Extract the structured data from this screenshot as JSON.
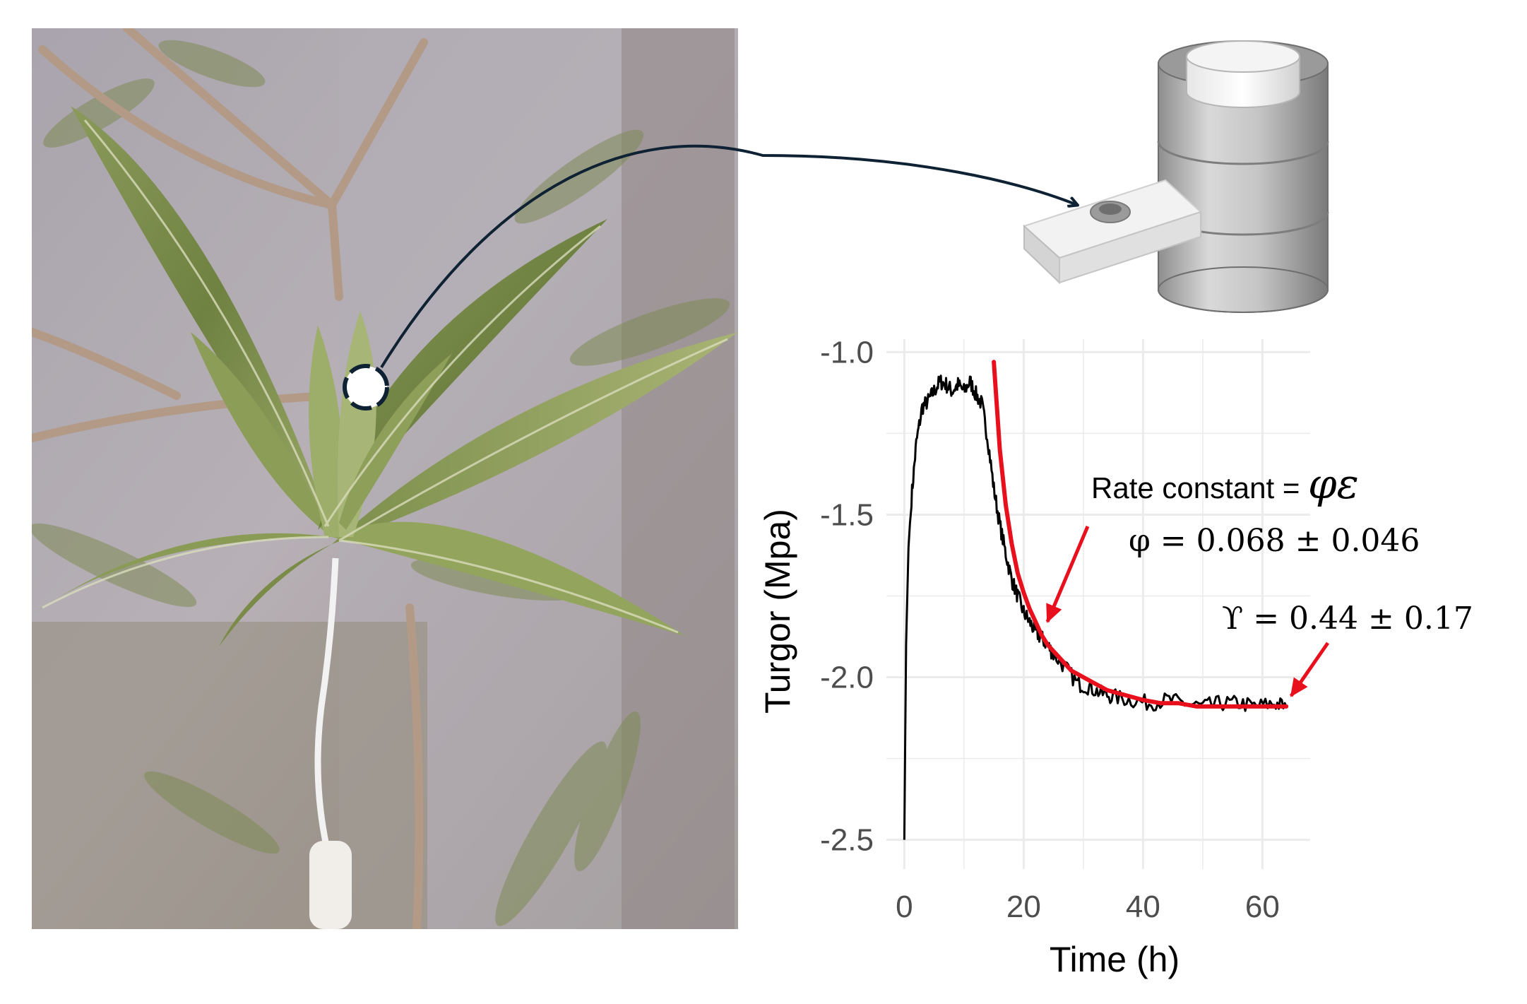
{
  "photo": {
    "subject": "olive-leaf-shoot",
    "marker_icon": "sample-spot-icon",
    "arrow_icon": "curved-arrow-icon"
  },
  "device": {
    "icon": "pressure-probe-icon"
  },
  "chart_data": {
    "type": "line",
    "title": "",
    "xlabel": "Time (h)",
    "ylabel": "Turgor (Mpa)",
    "xlim": [
      -3,
      68
    ],
    "ylim": [
      -2.59,
      -0.96
    ],
    "x_ticks": [
      0,
      20,
      40,
      60
    ],
    "y_ticks": [
      -1.0,
      -1.5,
      -2.0,
      -2.5
    ],
    "x_tick_labels": [
      "0",
      "20",
      "40",
      "60"
    ],
    "y_tick_labels": [
      "-1.0",
      "-1.5",
      "-2.0",
      "-2.5"
    ],
    "grid": true,
    "series": [
      {
        "name": "",
        "kind": "measured",
        "color": "#000000",
        "x": [
          0,
          0.3,
          0.7,
          1.2,
          2,
          3,
          4,
          5,
          6,
          7,
          8,
          9,
          10,
          11,
          12,
          13,
          14,
          15,
          16,
          17,
          18,
          19,
          20,
          21,
          22,
          23,
          24,
          25,
          27,
          29,
          31,
          33,
          35,
          38,
          41,
          44,
          47,
          50,
          53,
          56,
          59,
          62,
          64
        ],
        "y": [
          -2.5,
          -1.9,
          -1.6,
          -1.45,
          -1.28,
          -1.17,
          -1.15,
          -1.12,
          -1.09,
          -1.1,
          -1.12,
          -1.1,
          -1.12,
          -1.09,
          -1.13,
          -1.16,
          -1.27,
          -1.42,
          -1.53,
          -1.62,
          -1.7,
          -1.75,
          -1.8,
          -1.83,
          -1.86,
          -1.88,
          -1.9,
          -1.93,
          -1.97,
          -2.02,
          -2.03,
          -2.05,
          -2.06,
          -2.07,
          -2.08,
          -2.07,
          -2.08,
          -2.09,
          -2.08,
          -2.08,
          -2.09,
          -2.08,
          -2.09
        ]
      },
      {
        "name": "",
        "kind": "fit",
        "color": "#e8101c",
        "x": [
          15,
          16,
          17,
          18,
          19,
          20,
          21,
          22,
          23,
          24,
          25,
          26,
          28,
          30,
          32,
          34,
          36,
          38,
          40,
          43,
          46,
          49,
          52,
          55,
          58,
          61,
          64
        ],
        "y": [
          -1.03,
          -1.3,
          -1.47,
          -1.59,
          -1.68,
          -1.74,
          -1.79,
          -1.83,
          -1.87,
          -1.9,
          -1.92,
          -1.94,
          -1.98,
          -2.0,
          -2.02,
          -2.04,
          -2.05,
          -2.06,
          -2.07,
          -2.08,
          -2.08,
          -2.09,
          -2.09,
          -2.09,
          -2.09,
          -2.09,
          -2.09
        ]
      }
    ],
    "annotations": {
      "rate_constant_label": "Rate constant = ",
      "rate_constant_symbol": "φε",
      "phi_text": "φ = 0.068 ± 0.046",
      "upsilon_text": "ϒ = 0.44 ± 0.17",
      "arrow_color": "#e8101c"
    }
  }
}
